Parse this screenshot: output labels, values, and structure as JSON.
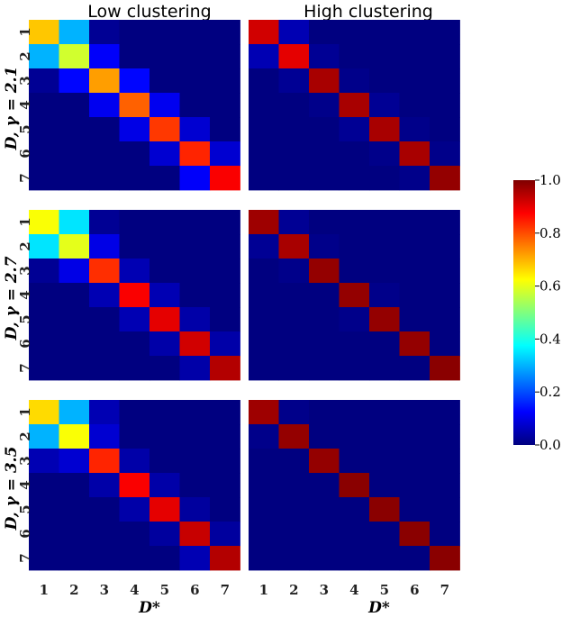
{
  "chart_data": {
    "type": "heatmap",
    "colormap": "jet",
    "columns": [
      "Low clustering",
      "High clustering"
    ],
    "rows": [
      {
        "ylabel": "D, γ = 2.1"
      },
      {
        "ylabel": "D, γ = 2.7"
      },
      {
        "ylabel": "D, γ = 3.5"
      }
    ],
    "xlabel": "D*",
    "tick_labels": [
      "1",
      "2",
      "3",
      "4",
      "5",
      "6",
      "7"
    ],
    "colorbar": {
      "ticks": [
        "0.0",
        "0.2",
        "0.4",
        "0.6",
        "0.8",
        "1.0"
      ],
      "range": [
        0,
        1
      ]
    },
    "matrices": [
      [
        [
          [
            0.68,
            0.3,
            0.02,
            0.0,
            0.0,
            0.0,
            0.0
          ],
          [
            0.3,
            0.58,
            0.12,
            0.0,
            0.0,
            0.0,
            0.0
          ],
          [
            0.02,
            0.13,
            0.72,
            0.13,
            0.0,
            0.0,
            0.0
          ],
          [
            0.0,
            0.0,
            0.11,
            0.78,
            0.11,
            0.0,
            0.0
          ],
          [
            0.0,
            0.0,
            0.0,
            0.1,
            0.82,
            0.08,
            0.0
          ],
          [
            0.0,
            0.0,
            0.0,
            0.0,
            0.08,
            0.84,
            0.08
          ],
          [
            0.0,
            0.0,
            0.0,
            0.0,
            0.0,
            0.12,
            0.88
          ]
        ],
        [
          [
            0.92,
            0.05,
            0.0,
            0.0,
            0.0,
            0.0,
            0.0
          ],
          [
            0.05,
            0.9,
            0.02,
            0.0,
            0.0,
            0.0,
            0.0
          ],
          [
            0.0,
            0.02,
            0.96,
            0.01,
            0.0,
            0.0,
            0.0
          ],
          [
            0.0,
            0.0,
            0.01,
            0.96,
            0.02,
            0.0,
            0.0
          ],
          [
            0.0,
            0.0,
            0.0,
            0.02,
            0.96,
            0.01,
            0.0
          ],
          [
            0.0,
            0.0,
            0.0,
            0.0,
            0.01,
            0.96,
            0.01
          ],
          [
            0.0,
            0.0,
            0.0,
            0.0,
            0.0,
            0.01,
            0.98
          ]
        ]
      ],
      [
        [
          [
            0.62,
            0.35,
            0.02,
            0.0,
            0.0,
            0.0,
            0.0
          ],
          [
            0.35,
            0.6,
            0.1,
            0.0,
            0.0,
            0.0,
            0.0
          ],
          [
            0.02,
            0.1,
            0.83,
            0.05,
            0.0,
            0.0,
            0.0
          ],
          [
            0.0,
            0.0,
            0.05,
            0.88,
            0.05,
            0.0,
            0.0
          ],
          [
            0.0,
            0.0,
            0.0,
            0.05,
            0.9,
            0.04,
            0.0
          ],
          [
            0.0,
            0.0,
            0.0,
            0.0,
            0.04,
            0.92,
            0.04
          ],
          [
            0.0,
            0.0,
            0.0,
            0.0,
            0.0,
            0.04,
            0.95
          ]
        ],
        [
          [
            0.97,
            0.02,
            0.0,
            0.0,
            0.0,
            0.0,
            0.0
          ],
          [
            0.02,
            0.96,
            0.01,
            0.0,
            0.0,
            0.0,
            0.0
          ],
          [
            0.0,
            0.01,
            0.98,
            0.0,
            0.0,
            0.0,
            0.0
          ],
          [
            0.0,
            0.0,
            0.0,
            0.98,
            0.01,
            0.0,
            0.0
          ],
          [
            0.0,
            0.0,
            0.0,
            0.01,
            0.98,
            0.0,
            0.0
          ],
          [
            0.0,
            0.0,
            0.0,
            0.0,
            0.0,
            0.98,
            0.0
          ],
          [
            0.0,
            0.0,
            0.0,
            0.0,
            0.0,
            0.0,
            0.99
          ]
        ]
      ],
      [
        [
          [
            0.66,
            0.3,
            0.05,
            0.0,
            0.0,
            0.0,
            0.0
          ],
          [
            0.3,
            0.62,
            0.08,
            0.0,
            0.0,
            0.0,
            0.0
          ],
          [
            0.05,
            0.08,
            0.84,
            0.04,
            0.0,
            0.0,
            0.0
          ],
          [
            0.0,
            0.0,
            0.04,
            0.88,
            0.04,
            0.0,
            0.0
          ],
          [
            0.0,
            0.0,
            0.0,
            0.04,
            0.9,
            0.03,
            0.0
          ],
          [
            0.0,
            0.0,
            0.0,
            0.0,
            0.03,
            0.93,
            0.03
          ],
          [
            0.0,
            0.0,
            0.0,
            0.0,
            0.0,
            0.05,
            0.95
          ]
        ],
        [
          [
            0.97,
            0.01,
            0.0,
            0.0,
            0.0,
            0.0,
            0.0
          ],
          [
            0.01,
            0.98,
            0.0,
            0.0,
            0.0,
            0.0,
            0.0
          ],
          [
            0.0,
            0.0,
            0.98,
            0.0,
            0.0,
            0.0,
            0.0
          ],
          [
            0.0,
            0.0,
            0.0,
            0.99,
            0.0,
            0.0,
            0.0
          ],
          [
            0.0,
            0.0,
            0.0,
            0.0,
            0.99,
            0.0,
            0.0
          ],
          [
            0.0,
            0.0,
            0.0,
            0.0,
            0.0,
            0.99,
            0.0
          ],
          [
            0.0,
            0.0,
            0.0,
            0.0,
            0.0,
            0.0,
            0.99
          ]
        ]
      ]
    ]
  }
}
